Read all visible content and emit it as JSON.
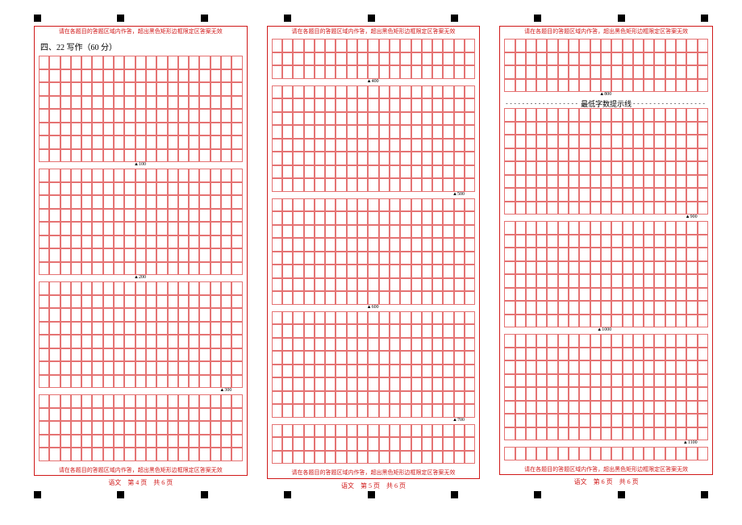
{
  "layout": {
    "grid_cols": 19,
    "grid_line_color": "#e57373",
    "border_color": "#d01919",
    "bg_color": "#ffffff",
    "text_color_warn": "#d01919",
    "text_color_main": "#000000",
    "reg_mark_size": 9,
    "reg_marks_per_strip": 9
  },
  "columns": [
    {
      "warn_top": "请在各题目的答题区域内作答，超出黑色矩形边框限定区答案无效",
      "warn_bottom": "请在各题目的答题区域内作答，超出黑色矩形边框限定区答案无效",
      "section_title": "四、22 写作（60 分）",
      "blocks": [
        {
          "type": "rows",
          "count": 8
        },
        {
          "type": "marker",
          "label": "▲100",
          "col": 10
        },
        {
          "type": "rows",
          "count": 8
        },
        {
          "type": "marker",
          "label": "▲200",
          "col": 10
        },
        {
          "type": "rows",
          "count": 8
        },
        {
          "type": "marker",
          "label": "▲300",
          "col": 18
        },
        {
          "type": "rows",
          "count": 5
        }
      ],
      "footer": "语文　第 4 页　共 6 页"
    },
    {
      "warn_top": "请在各题目的答题区域内作答，超出黑色矩形边框限定区答案无效",
      "warn_bottom": "请在各题目的答题区域内作答，超出黑色矩形边框限定区答案无效",
      "section_title": "",
      "blocks": [
        {
          "type": "rows",
          "count": 3
        },
        {
          "type": "marker",
          "label": "▲400",
          "col": 10
        },
        {
          "type": "rows",
          "count": 8
        },
        {
          "type": "marker",
          "label": "▲500",
          "col": 18
        },
        {
          "type": "rows",
          "count": 8
        },
        {
          "type": "marker",
          "label": "▲600",
          "col": 10
        },
        {
          "type": "rows",
          "count": 8
        },
        {
          "type": "marker",
          "label": "▲700",
          "col": 18
        },
        {
          "type": "rows",
          "count": 3
        }
      ],
      "footer": "语文　第 5 页　共 6 页"
    },
    {
      "warn_top": "请在各题目的答题区域内作答，超出黑色矩形边框限定区答案无效",
      "warn_bottom": "请在各题目的答题区域内作答，超出黑色矩形边框限定区答案无效",
      "section_title": "",
      "blocks": [
        {
          "type": "rows",
          "count": 4
        },
        {
          "type": "marker",
          "label": "▲800",
          "col": 10
        },
        {
          "type": "minline",
          "text": "最低字数提示线"
        },
        {
          "type": "rows",
          "count": 8
        },
        {
          "type": "marker",
          "label": "▲900",
          "col": 18
        },
        {
          "type": "rows",
          "count": 8
        },
        {
          "type": "marker",
          "label": "▲1000",
          "col": 10
        },
        {
          "type": "rows",
          "count": 8
        },
        {
          "type": "marker",
          "label": "▲1100",
          "col": 18
        },
        {
          "type": "rows",
          "count": 1
        }
      ],
      "footer": "语文　第 6 页　共 6 页"
    }
  ]
}
